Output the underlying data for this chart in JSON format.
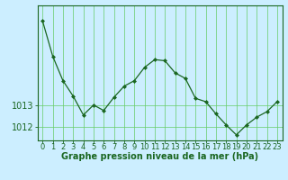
{
  "x": [
    0,
    1,
    2,
    3,
    4,
    5,
    6,
    7,
    8,
    9,
    10,
    11,
    12,
    13,
    14,
    15,
    16,
    17,
    18,
    19,
    20,
    21,
    22,
    23
  ],
  "y": [
    1016.8,
    1015.2,
    1014.1,
    1013.4,
    1012.55,
    1013.0,
    1012.75,
    1013.35,
    1013.85,
    1014.1,
    1014.7,
    1015.05,
    1015.0,
    1014.45,
    1014.2,
    1013.3,
    1013.15,
    1012.6,
    1012.1,
    1011.65,
    1012.1,
    1012.45,
    1012.7,
    1013.15
  ],
  "line_color": "#1a6620",
  "marker_color": "#1a6620",
  "bg_color": "#cceeff",
  "grid_color": "#66cc66",
  "xlabel": "Graphe pression niveau de la mer (hPa)",
  "ylim_min": 1011.4,
  "ylim_max": 1017.5,
  "yticks": [
    1012,
    1013
  ],
  "xticks": [
    0,
    1,
    2,
    3,
    4,
    5,
    6,
    7,
    8,
    9,
    10,
    11,
    12,
    13,
    14,
    15,
    16,
    17,
    18,
    19,
    20,
    21,
    22,
    23
  ],
  "tick_color": "#1a6620",
  "xlabel_color": "#1a6620",
  "xlabel_fontsize": 7,
  "tick_fontsize": 6,
  "ytick_fontsize": 7
}
